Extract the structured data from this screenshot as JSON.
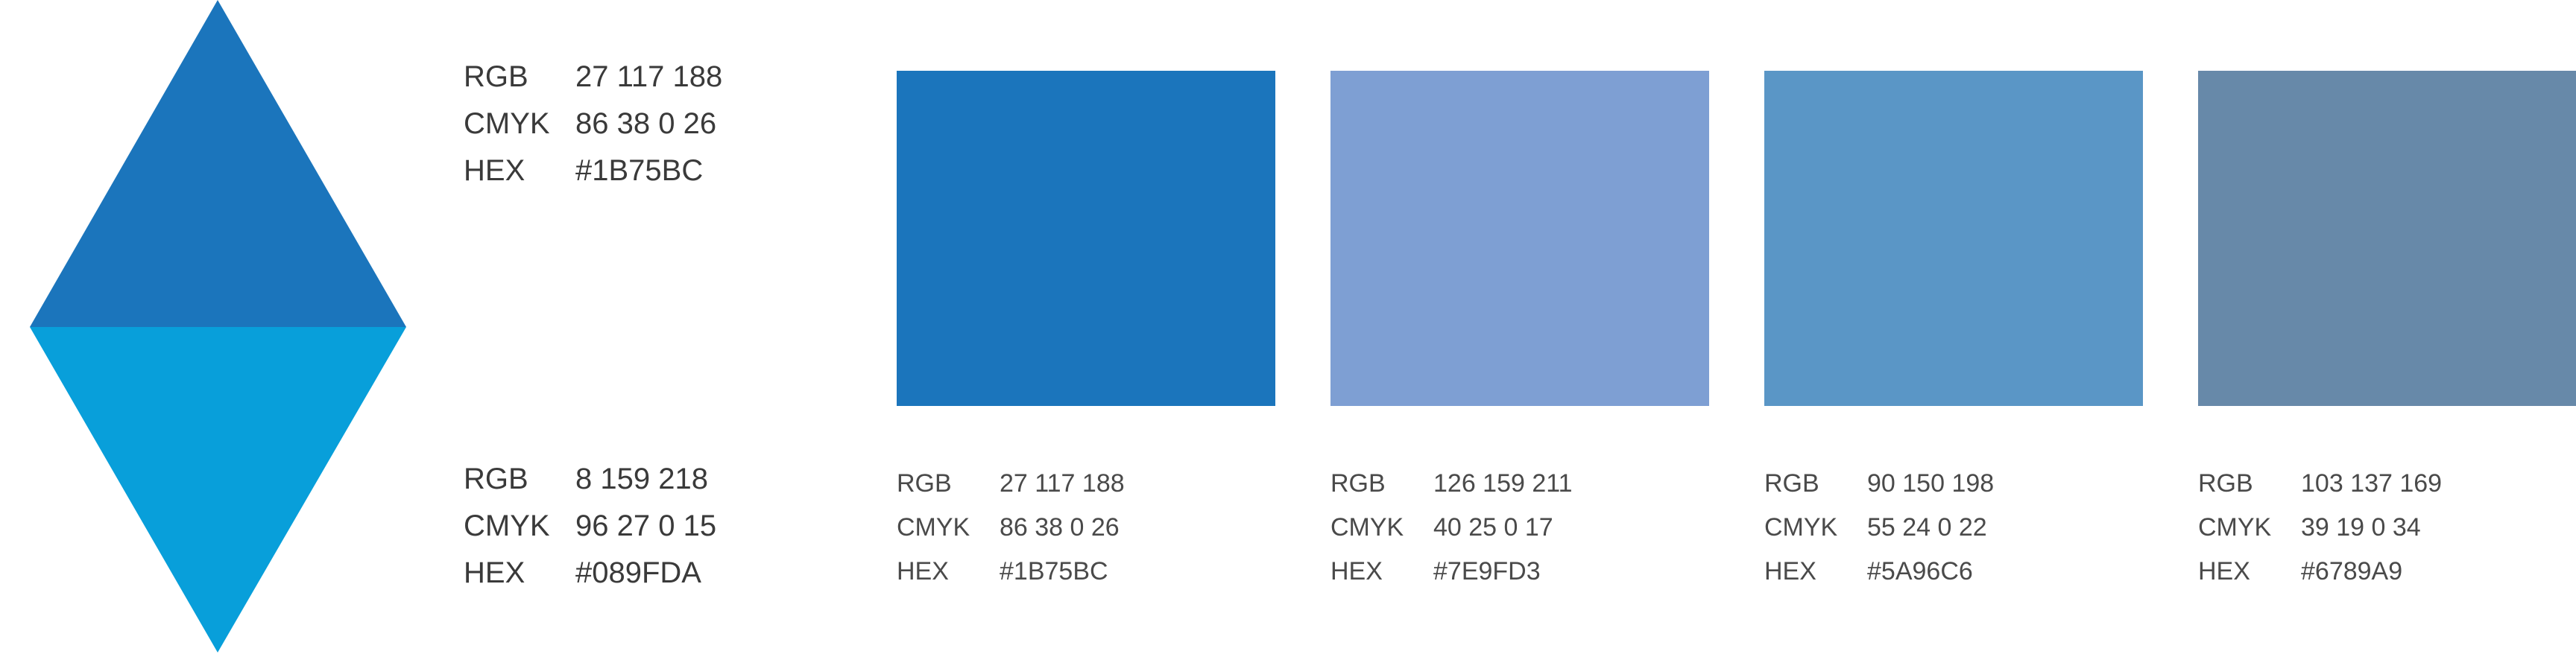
{
  "diamond": {
    "top_color": "#1B75BC",
    "bottom_color": "#089FDA"
  },
  "primary_specs": [
    {
      "rgb_label": "RGB",
      "rgb": "27 117 188",
      "cmyk_label": "CMYK",
      "cmyk": "86 38 0 26",
      "hex_label": "HEX",
      "hex": "#1B75BC"
    },
    {
      "rgb_label": "RGB",
      "rgb": "8 159 218",
      "cmyk_label": "CMYK",
      "cmyk": "96 27 0 15",
      "hex_label": "HEX",
      "hex": "#089FDA"
    }
  ],
  "swatches": [
    {
      "color": "#1B75BC",
      "rgb_label": "RGB",
      "rgb": "27 117 188",
      "cmyk_label": "CMYK",
      "cmyk": "86 38 0 26",
      "hex_label": "HEX",
      "hex": "#1B75BC"
    },
    {
      "color": "#7E9FD3",
      "rgb_label": "RGB",
      "rgb": "126 159 211",
      "cmyk_label": "CMYK",
      "cmyk": "40 25 0 17",
      "hex_label": "HEX",
      "hex": "#7E9FD3"
    },
    {
      "color": "#5A96C6",
      "rgb_label": "RGB",
      "rgb": "90 150 198",
      "cmyk_label": "CMYK",
      "cmyk": "55 24 0 22",
      "hex_label": "HEX",
      "hex": "#5A96C6"
    },
    {
      "color": "#6789A9",
      "rgb_label": "RGB",
      "rgb": "103 137 169",
      "cmyk_label": "CMYK",
      "cmyk": "39 19 0 34",
      "hex_label": "HEX",
      "hex": "#6789A9"
    }
  ]
}
